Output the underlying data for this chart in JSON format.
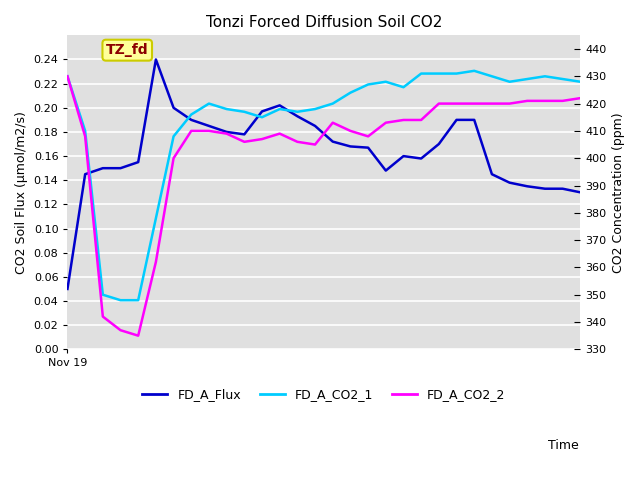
{
  "title": "Tonzi Forced Diffusion Soil CO2",
  "xlabel": "Time",
  "ylabel_left": "CO2 Soil Flux (μmol/m2/s)",
  "ylabel_right": "CO2 Concentration (ppm)",
  "ylim_left": [
    0.0,
    0.26
  ],
  "ylim_right": [
    330,
    445
  ],
  "yticks_left": [
    0.0,
    0.02,
    0.04,
    0.06,
    0.08,
    0.1,
    0.12,
    0.14,
    0.16,
    0.18,
    0.2,
    0.22,
    0.24
  ],
  "yticks_right": [
    330,
    340,
    350,
    360,
    370,
    380,
    390,
    400,
    410,
    420,
    430,
    440
  ],
  "xtick_label": "Nov 19",
  "annotation_text": "TZ_fd",
  "annotation_color": "#8B0000",
  "annotation_bg": "#FFFF99",
  "annotation_edge": "#CCCC00",
  "bg_color": "#E0E0E0",
  "grid_color": "#FFFFFF",
  "flux_color": "#0000CC",
  "co2_1_color": "#00CCFF",
  "co2_2_color": "#FF00FF",
  "flux_x": [
    0,
    1,
    2,
    3,
    4,
    5,
    6,
    7,
    8,
    9,
    10,
    11,
    12,
    13,
    14,
    15,
    16,
    17,
    18,
    19,
    20,
    21,
    22,
    23,
    24,
    25,
    26,
    27,
    28,
    29
  ],
  "flux_y": [
    0.05,
    0.145,
    0.15,
    0.15,
    0.155,
    0.24,
    0.2,
    0.19,
    0.185,
    0.18,
    0.178,
    0.197,
    0.202,
    0.193,
    0.185,
    0.172,
    0.168,
    0.167,
    0.148,
    0.16,
    0.158,
    0.17,
    0.19,
    0.19,
    0.145,
    0.138,
    0.135,
    0.133,
    0.133,
    0.13
  ],
  "co2_1_ppm": [
    430,
    410,
    350,
    348,
    348,
    378,
    408,
    416,
    420,
    418,
    417,
    415,
    418,
    417,
    418,
    420,
    424,
    427,
    428,
    426,
    431,
    431,
    431,
    432,
    430,
    428,
    429,
    430,
    429,
    428
  ],
  "co2_2_ppm": [
    430,
    408,
    342,
    337,
    335,
    362,
    400,
    410,
    410,
    409,
    406,
    407,
    409,
    406,
    405,
    413,
    410,
    408,
    413,
    414,
    414,
    420,
    420,
    420,
    420,
    420,
    421,
    421,
    421,
    422
  ],
  "legend_labels": [
    "FD_A_Flux",
    "FD_A_CO2_1",
    "FD_A_CO2_2"
  ],
  "legend_colors": [
    "#0000CC",
    "#00CCFF",
    "#FF00FF"
  ],
  "linewidth": 1.8
}
